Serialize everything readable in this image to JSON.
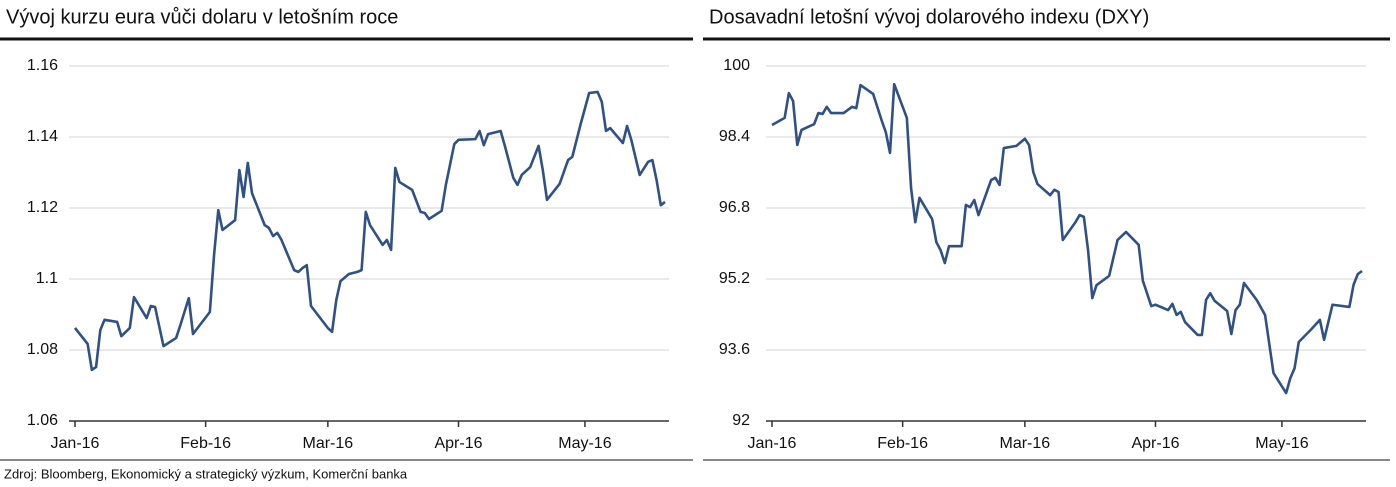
{
  "chart_data": [
    {
      "type": "line",
      "title": "Vývoj kurzu eura vůči dolaru v letošním roce",
      "xlim": [
        0,
        140
      ],
      "xticks": [
        {
          "value": 0,
          "label": "Jan-16"
        },
        {
          "value": 31,
          "label": "Feb-16"
        },
        {
          "value": 60,
          "label": "Mar-16"
        },
        {
          "value": 91,
          "label": "Apr-16"
        },
        {
          "value": 121,
          "label": "May-16"
        }
      ],
      "ylim": [
        1.06,
        1.16
      ],
      "yticks": [
        1.06,
        1.08,
        1.1,
        1.12,
        1.14,
        1.16
      ],
      "grid": true,
      "series": [
        {
          "color": "#2f5185",
          "x": [
            0,
            3,
            4,
            5,
            6,
            7,
            10,
            11,
            13,
            14,
            17,
            18,
            19,
            21,
            24,
            25,
            27,
            28,
            32,
            33,
            34,
            35,
            38,
            39,
            40,
            41,
            42,
            45,
            46,
            47,
            48,
            49,
            52,
            53,
            54,
            55,
            56,
            60,
            61,
            62,
            63,
            65,
            67,
            68,
            69,
            70,
            73,
            74,
            75,
            76,
            77,
            80,
            82,
            83,
            84,
            87,
            88,
            90,
            91,
            95,
            96,
            97,
            98,
            101,
            102,
            104,
            105,
            106,
            108,
            110,
            111,
            112,
            115,
            117,
            118,
            120,
            122,
            124,
            125,
            126,
            127,
            130,
            131,
            132,
            134,
            136,
            137,
            138,
            139,
            140
          ],
          "values": [
            1.0862,
            1.0817,
            1.0744,
            1.0752,
            1.0856,
            1.0885,
            1.0879,
            1.0839,
            1.0862,
            1.0949,
            1.089,
            1.0924,
            1.0921,
            1.0811,
            1.0834,
            1.087,
            1.0946,
            1.0845,
            1.0907,
            1.1068,
            1.1194,
            1.1138,
            1.1166,
            1.1307,
            1.1231,
            1.1327,
            1.1242,
            1.1152,
            1.1144,
            1.1121,
            1.113,
            1.111,
            1.1025,
            1.102,
            1.1031,
            1.1039,
            1.0924,
            1.0862,
            1.0851,
            1.0941,
            1.0994,
            1.1014,
            1.102,
            1.1025,
            1.1189,
            1.1152,
            1.1096,
            1.111,
            1.1082,
            1.1313,
            1.1273,
            1.1251,
            1.1189,
            1.1186,
            1.1169,
            1.1192,
            1.1265,
            1.138,
            1.1392,
            1.1394,
            1.1417,
            1.1377,
            1.1408,
            1.1417,
            1.1375,
            1.1285,
            1.1265,
            1.1293,
            1.1315,
            1.1375,
            1.1307,
            1.1223,
            1.1268,
            1.1335,
            1.1344,
            1.1437,
            1.1524,
            1.1527,
            1.1499,
            1.1417,
            1.1425,
            1.1383,
            1.1431,
            1.1392,
            1.1293,
            1.133,
            1.1335,
            1.1279,
            1.1208,
            1.1217
          ]
        }
      ]
    },
    {
      "type": "line",
      "title": "Dosavadní letošní vývoj dolarového indexu (DXY)",
      "xlim": [
        0,
        140
      ],
      "xticks": [
        {
          "value": 0,
          "label": "Jan-16"
        },
        {
          "value": 31,
          "label": "Feb-16"
        },
        {
          "value": 60,
          "label": "Mar-16"
        },
        {
          "value": 91,
          "label": "Apr-16"
        },
        {
          "value": 121,
          "label": "May-16"
        }
      ],
      "ylim": [
        92,
        100
      ],
      "yticks": [
        92,
        93.6,
        95.2,
        96.8,
        98.4,
        100
      ],
      "grid": true,
      "series": [
        {
          "color": "#2f5185",
          "x": [
            0,
            3,
            4,
            5,
            6,
            7,
            10,
            11,
            12,
            13,
            14,
            17,
            19,
            20,
            21,
            24,
            26,
            27,
            28,
            29,
            32,
            33,
            34,
            35,
            38,
            39,
            40,
            41,
            42,
            45,
            46,
            47,
            48,
            49,
            52,
            53,
            54,
            55,
            58,
            60,
            61,
            62,
            63,
            66,
            67,
            68,
            69,
            72,
            73,
            74,
            75,
            76,
            77,
            80,
            82,
            84,
            87,
            88,
            90,
            91,
            94,
            95,
            96,
            97,
            98,
            101,
            102,
            103,
            104,
            105,
            108,
            109,
            110,
            111,
            112,
            115,
            117,
            119,
            122,
            123,
            124,
            125,
            128,
            130,
            131,
            133,
            137,
            138,
            139,
            140
          ],
          "values": [
            98.67,
            98.83,
            99.39,
            99.21,
            98.22,
            98.56,
            98.69,
            98.94,
            98.92,
            99.08,
            98.94,
            98.94,
            99.08,
            99.05,
            99.57,
            99.37,
            98.78,
            98.51,
            98.04,
            99.59,
            98.83,
            97.25,
            96.48,
            97.03,
            96.55,
            96.03,
            95.85,
            95.56,
            95.94,
            95.94,
            96.87,
            96.82,
            96.98,
            96.64,
            97.43,
            97.48,
            97.32,
            98.15,
            98.2,
            98.36,
            98.22,
            97.61,
            97.34,
            97.09,
            97.21,
            97.16,
            96.08,
            96.48,
            96.64,
            96.6,
            95.85,
            94.77,
            95.06,
            95.27,
            96.08,
            96.26,
            95.97,
            95.16,
            94.59,
            94.62,
            94.5,
            94.64,
            94.39,
            94.46,
            94.23,
            93.94,
            93.94,
            94.73,
            94.88,
            94.71,
            94.48,
            93.96,
            94.5,
            94.62,
            95.11,
            94.73,
            94.39,
            93.08,
            92.63,
            92.97,
            93.19,
            93.78,
            94.07,
            94.28,
            93.83,
            94.62,
            94.57,
            95.07,
            95.31,
            95.38
          ]
        }
      ]
    }
  ],
  "source": "Zdroj: Bloomberg, Ekonomický a strategický výzkum, Komerční banka"
}
